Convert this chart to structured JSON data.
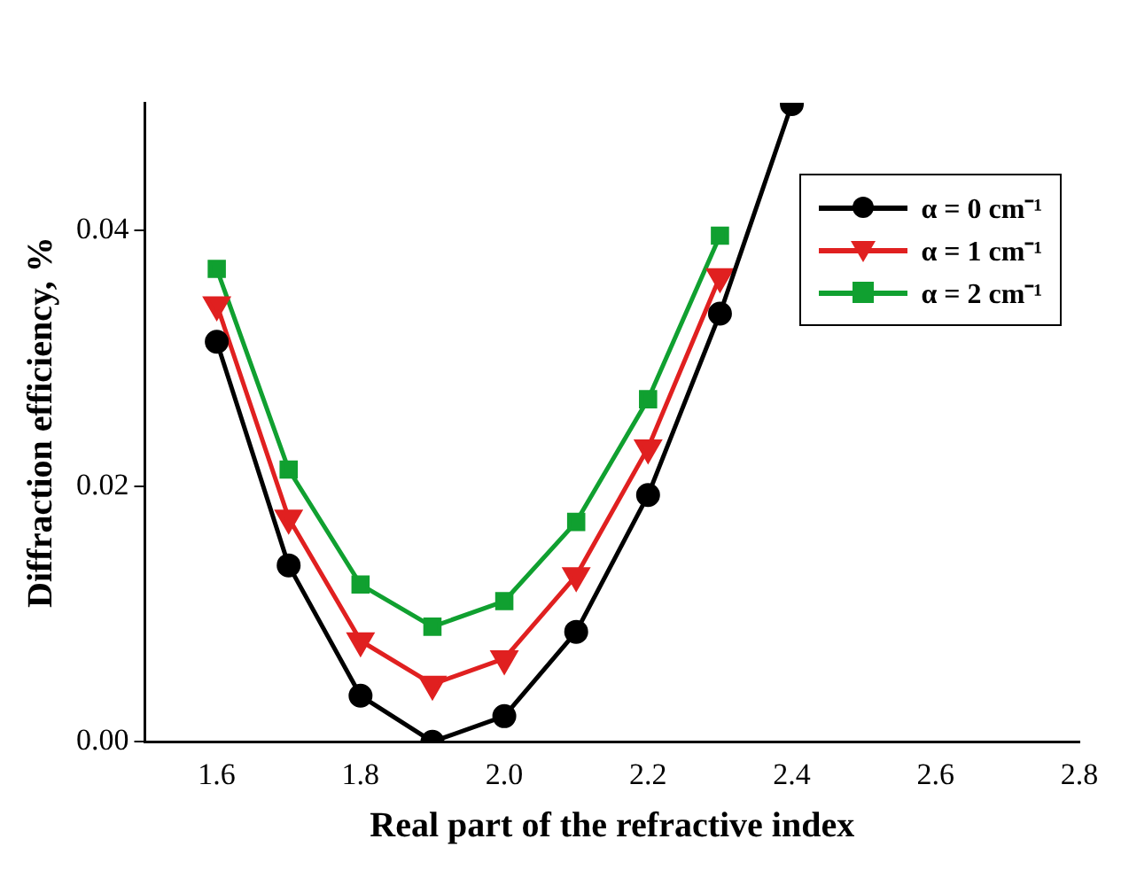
{
  "chart_data": {
    "type": "line",
    "xlabel": "Real part of the refractive index",
    "ylabel": "Diffraction efficiency, %",
    "x": [
      1.6,
      1.7,
      1.8,
      1.9,
      2.0,
      2.1,
      2.2,
      2.3,
      2.4
    ],
    "series": [
      {
        "name": "α = 0 cm⁻¹",
        "color": "#000000",
        "marker": "circle",
        "values": [
          0.0313,
          0.0138,
          0.0036,
          0.0,
          0.002,
          0.0086,
          0.0193,
          0.0335,
          0.0499
        ]
      },
      {
        "name": "α = 1 cm⁻¹",
        "color": "#e02020",
        "marker": "triangle",
        "values": [
          0.0342,
          0.0175,
          0.0079,
          0.0045,
          0.0065,
          0.013,
          0.023,
          0.0364,
          null
        ]
      },
      {
        "name": "α = 2 cm⁻¹",
        "color": "#10a030",
        "marker": "square",
        "values": [
          0.037,
          0.0213,
          0.0123,
          0.009,
          0.011,
          0.0172,
          0.0268,
          0.0396,
          null
        ]
      }
    ],
    "xlim": [
      1.5,
      2.8
    ],
    "xticks": [
      {
        "value": 1.6,
        "label": "1.6"
      },
      {
        "value": 1.8,
        "label": "1.8"
      },
      {
        "value": 2.0,
        "label": "2.0"
      },
      {
        "value": 2.2,
        "label": "2.2"
      },
      {
        "value": 2.4,
        "label": "2.4"
      },
      {
        "value": 2.6,
        "label": "2.6"
      },
      {
        "value": 2.8,
        "label": "2.8"
      }
    ],
    "ylim": [
      0,
      0.05
    ],
    "yticks": [
      {
        "value": 0,
        "label": "0.00"
      },
      {
        "value": 0.02,
        "label": "0.02"
      },
      {
        "value": 0.04,
        "label": "0.04"
      }
    ],
    "grid": false,
    "legend": "top right",
    "line_style": "solid"
  }
}
